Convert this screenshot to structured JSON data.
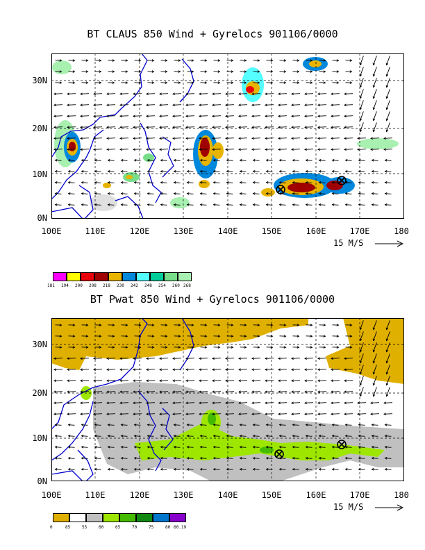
{
  "panels": [
    {
      "title": "BT CLAUS 850 Wind + Gyrelocs 901106/0000",
      "lat_labels": [
        "30N",
        "20N",
        "10N",
        "0N"
      ],
      "lon_labels": [
        "100E",
        "110E",
        "120E",
        "130E",
        "140E",
        "150E",
        "160E",
        "170E",
        "180"
      ],
      "scale_label": "15 M/S",
      "legend_labels": [
        "181",
        "194",
        "200",
        "208",
        "218",
        "230",
        "242",
        "248",
        "254",
        "260",
        "268"
      ],
      "legend_colors": [
        "#ff00ff",
        "#ffff00",
        "#e8000b",
        "#a00000",
        "#e8b400",
        "#0088dd",
        "#55ffff",
        "#00cc99",
        "#77dd88",
        "#a8f0b0",
        "#e0e0e0"
      ],
      "gyre_locations": [
        {
          "lon": "152E",
          "lat": "7N"
        },
        {
          "lon": "166E",
          "lat": "9N"
        }
      ]
    },
    {
      "title": "BT Pwat 850 Wind + Gyrelocs 901106/0000",
      "lat_labels": [
        "30N",
        "20N",
        "10N",
        "0N"
      ],
      "lon_labels": [
        "100E",
        "110E",
        "120E",
        "130E",
        "140E",
        "150E",
        "160E",
        "170E",
        "180"
      ],
      "scale_label": "15 M/S",
      "legend_labels": [
        "0",
        "85",
        "55",
        "60",
        "65",
        "70",
        "75",
        "80",
        "60.19"
      ],
      "legend_colors": [
        "#e0b000",
        "#ffffff",
        "#c0c0c0",
        "#9ee600",
        "#44bb00",
        "#118811",
        "#0077cc",
        "#8800cc"
      ],
      "gyre_locations": [
        {
          "lon": "152E",
          "lat": "7N"
        },
        {
          "lon": "166E",
          "lat": "9N"
        }
      ]
    }
  ]
}
